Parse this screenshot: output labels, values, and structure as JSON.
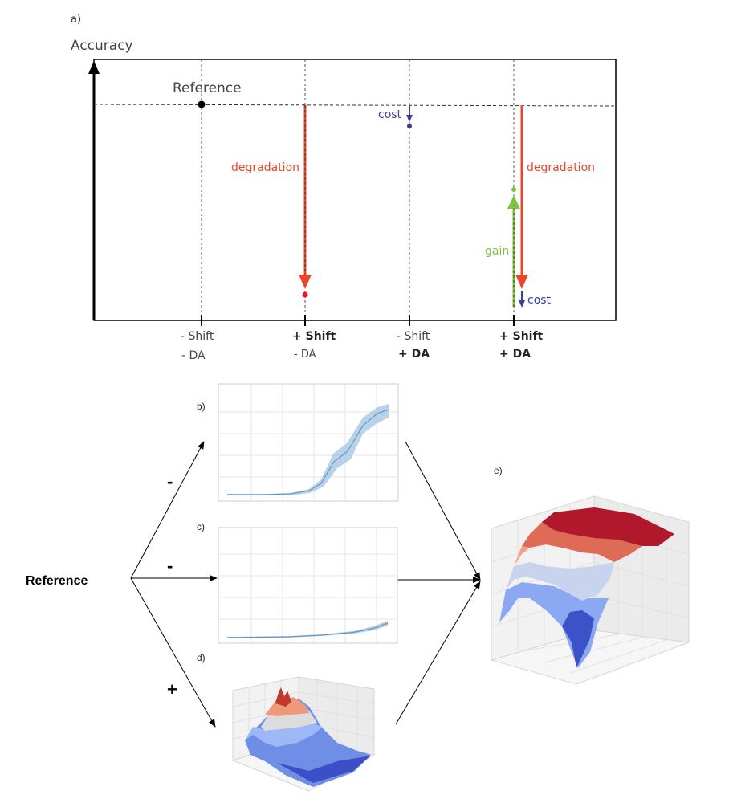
{
  "panel_a": {
    "label": "a)",
    "y_axis_label": "Accuracy",
    "reference_label": "Reference",
    "conditions": [
      {
        "shift": "- Shift",
        "da": "- DA",
        "shift_bold": false,
        "da_bold": false
      },
      {
        "shift": "+ Shift",
        "da": "- DA",
        "shift_bold": true,
        "da_bold": false
      },
      {
        "shift": "- Shift",
        "da": "+ DA",
        "shift_bold": false,
        "da_bold": true
      },
      {
        "shift": "+ Shift",
        "da": "+ DA",
        "shift_bold": true,
        "da_bold": true
      }
    ],
    "annotations": {
      "degradation_1": "degradation",
      "cost_1": "cost",
      "degradation_2": "degradation",
      "gain": "gain",
      "cost_2": "cost"
    },
    "colors": {
      "degradation": "#e8472a",
      "cost": "#3a3f9a",
      "gain": "#7cc243",
      "axis": "#000000"
    }
  },
  "panel_labels": {
    "b": "b)",
    "c": "c)",
    "d": "d)",
    "e": "e)"
  },
  "flow": {
    "reference": "Reference",
    "sign_b": "-",
    "sign_c": "-",
    "sign_d": "+"
  }
}
